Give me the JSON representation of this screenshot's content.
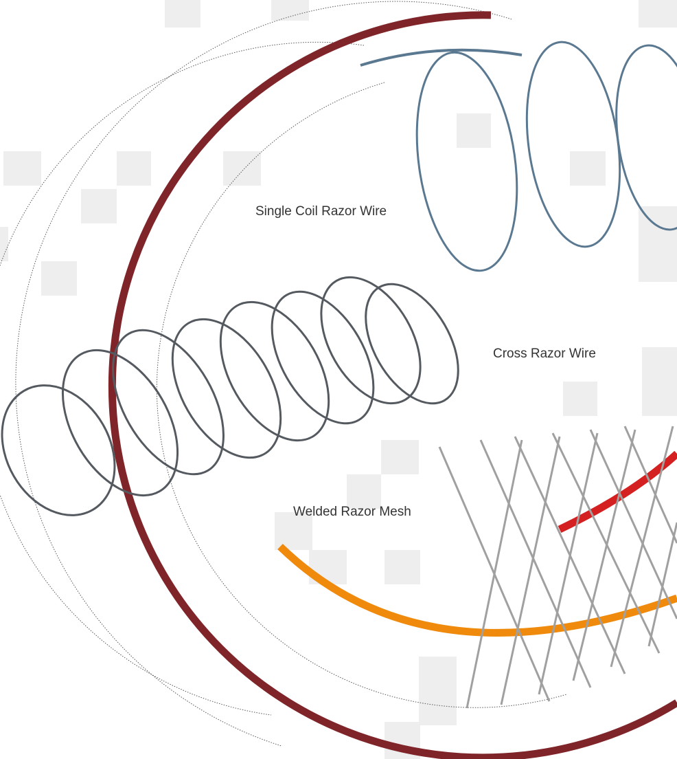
{
  "labels": [
    "Single Coil Razor Wire",
    "Cross Razor Wire",
    "Welded Razor Mesh"
  ]
}
